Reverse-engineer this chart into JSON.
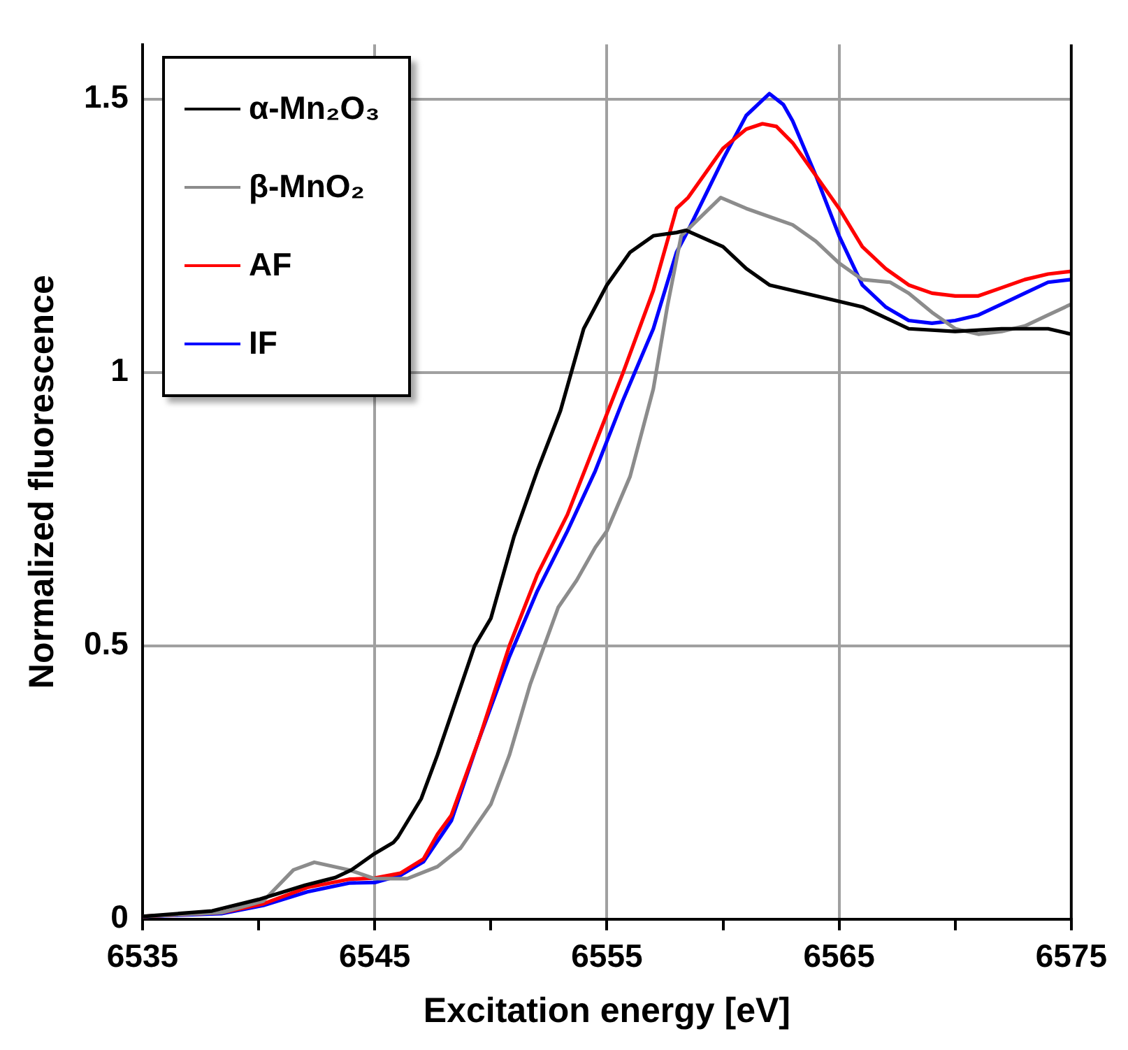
{
  "chart_data": {
    "type": "line",
    "xlabel": "Excitation energy [eV]",
    "ylabel": "Normalized fluorescence",
    "xlim": [
      6535,
      6575
    ],
    "xticks": [
      6535,
      {
        "value": 6540,
        "label": null
      },
      6545,
      {
        "value": 6550,
        "label": null
      },
      6555,
      {
        "value": 6560,
        "label": null
      },
      6565,
      {
        "value": 6570,
        "label": null
      },
      6575
    ],
    "ylim": [
      0,
      1.6
    ],
    "yticks": [
      0,
      0.5,
      1,
      1.5
    ],
    "grid": true,
    "legend": "top left",
    "marker": "none",
    "line_style": "solid",
    "series": [
      {
        "name": "α-Mn₂O₃",
        "color": "#000000",
        "x": [
          6535,
          6538,
          6540,
          6542,
          6543.3,
          6544,
          6545,
          6545.8,
          6546,
          6547,
          6547.7,
          6548.3,
          6549.3,
          6550,
          6551,
          6552,
          6553,
          6554,
          6555,
          6556,
          6557,
          6558,
          6558.4,
          6560,
          6561,
          6562,
          6564,
          6566,
          6568,
          6570,
          6572,
          6574,
          6575
        ],
        "values": [
          0.005,
          0.015,
          0.036,
          0.062,
          0.076,
          0.09,
          0.12,
          0.14,
          0.15,
          0.22,
          0.3,
          0.375,
          0.5,
          0.55,
          0.7,
          0.82,
          0.93,
          1.08,
          1.16,
          1.22,
          1.25,
          1.256,
          1.26,
          1.23,
          1.19,
          1.16,
          1.14,
          1.12,
          1.08,
          1.075,
          1.08,
          1.08,
          1.07
        ]
      },
      {
        "name": "β-MnO₂",
        "color": "#8c8c8c",
        "x": [
          6535,
          6538.4,
          6540.2,
          6541.5,
          6542.4,
          6543.9,
          6545,
          6546.4,
          6547.7,
          6548.7,
          6550,
          6550.8,
          6551.7,
          6552.3,
          6552.9,
          6553.7,
          6554.5,
          6555,
          6556,
          6557,
          6557.6,
          6558.2,
          6559.9,
          6561,
          6562,
          6563,
          6564,
          6565,
          6566,
          6567.2,
          6568,
          6569,
          6570,
          6571,
          6572,
          6573,
          6574,
          6575
        ],
        "values": [
          0.005,
          0.012,
          0.033,
          0.09,
          0.104,
          0.09,
          0.074,
          0.074,
          0.096,
          0.13,
          0.21,
          0.3,
          0.43,
          0.5,
          0.57,
          0.62,
          0.68,
          0.71,
          0.81,
          0.97,
          1.12,
          1.25,
          1.32,
          1.3,
          1.285,
          1.27,
          1.24,
          1.2,
          1.17,
          1.165,
          1.145,
          1.11,
          1.08,
          1.07,
          1.075,
          1.085,
          1.105,
          1.125
        ]
      },
      {
        "name": "AF",
        "color": "#ff0000",
        "x": [
          6535,
          6538.4,
          6540.2,
          6542.1,
          6543.9,
          6545,
          6546.1,
          6547.1,
          6547.7,
          6548.3,
          6549.5,
          6550.8,
          6552,
          6553.3,
          6554.5,
          6555.7,
          6557,
          6558,
          6558.5,
          6560,
          6561,
          6561.7,
          6562.3,
          6563,
          6564,
          6565,
          6566,
          6567,
          6568,
          6569,
          6570,
          6571,
          6572,
          6573,
          6574,
          6575
        ],
        "values": [
          0.005,
          0.012,
          0.028,
          0.058,
          0.073,
          0.075,
          0.084,
          0.11,
          0.155,
          0.19,
          0.33,
          0.5,
          0.63,
          0.74,
          0.87,
          1.0,
          1.15,
          1.3,
          1.32,
          1.41,
          1.445,
          1.455,
          1.45,
          1.42,
          1.36,
          1.3,
          1.23,
          1.19,
          1.16,
          1.145,
          1.14,
          1.14,
          1.155,
          1.17,
          1.18,
          1.185
        ]
      },
      {
        "name": "IF",
        "color": "#0000ff",
        "x": [
          6535,
          6538.4,
          6540.2,
          6542.1,
          6543.9,
          6545,
          6546.1,
          6547.1,
          6548.3,
          6549.5,
          6550.8,
          6552,
          6553.3,
          6554.5,
          6555.7,
          6557,
          6558,
          6558.5,
          6560,
          6561,
          6562,
          6562.6,
          6563,
          6564,
          6565,
          6566,
          6567,
          6568,
          6569,
          6570,
          6571,
          6572,
          6573,
          6574,
          6575
        ],
        "values": [
          0.005,
          0.01,
          0.025,
          0.05,
          0.066,
          0.067,
          0.08,
          0.105,
          0.18,
          0.33,
          0.48,
          0.6,
          0.71,
          0.82,
          0.95,
          1.08,
          1.22,
          1.26,
          1.39,
          1.47,
          1.51,
          1.49,
          1.46,
          1.36,
          1.25,
          1.16,
          1.12,
          1.095,
          1.09,
          1.095,
          1.105,
          1.125,
          1.145,
          1.165,
          1.17
        ]
      }
    ]
  }
}
